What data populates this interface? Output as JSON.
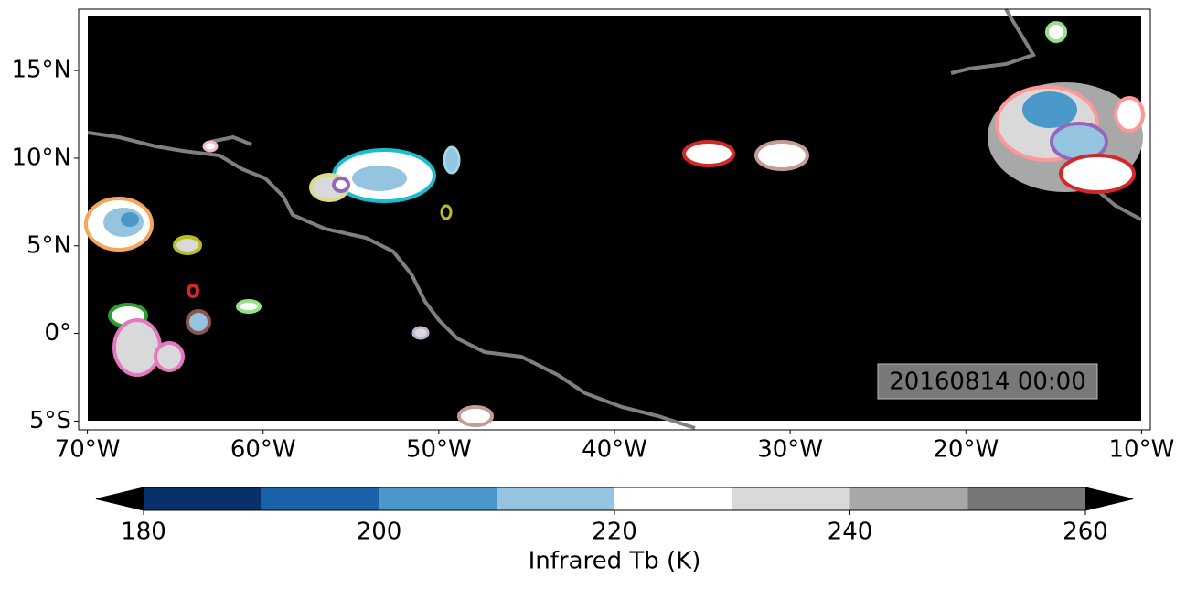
{
  "map": {
    "lonlim": [
      -70.5,
      -9.5
    ],
    "latlim": [
      -5.5,
      18.5
    ],
    "xticks": [
      {
        "value": -70,
        "label": "70°W"
      },
      {
        "value": -60,
        "label": "60°W"
      },
      {
        "value": -50,
        "label": "50°W"
      },
      {
        "value": -40,
        "label": "40°W"
      },
      {
        "value": -30,
        "label": "30°W"
      },
      {
        "value": -20,
        "label": "20°W"
      },
      {
        "value": -10,
        "label": "10°W"
      }
    ],
    "yticks": [
      {
        "value": -5,
        "label": "5°S"
      },
      {
        "value": 0,
        "label": "0°"
      },
      {
        "value": 5,
        "label": "5°N"
      },
      {
        "value": 10,
        "label": "10°N"
      },
      {
        "value": 15,
        "label": "15°N"
      }
    ],
    "grid": true,
    "timestamp": "20160814 00:00"
  },
  "colorbar": {
    "label": "Infrared Tb (K)",
    "bounds": [
      180,
      190,
      200,
      210,
      220,
      230,
      240,
      250,
      260
    ],
    "colors": [
      "#08306b",
      "#1a62a8",
      "#4a98c9",
      "#94c4df",
      "#ffffff",
      "#d9d9d9",
      "#a8a8a8",
      "#777777"
    ],
    "extend_colors": [
      "#000000",
      "#000000"
    ],
    "ticks": [
      180,
      200,
      220,
      240,
      260
    ]
  }
}
